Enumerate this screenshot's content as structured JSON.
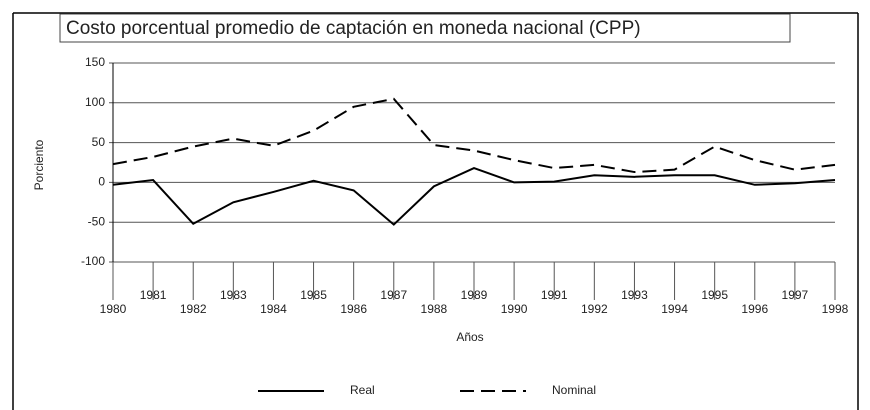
{
  "chart_data": {
    "type": "line",
    "title": "Costo porcentual promedio de captación en moneda nacional (CPP)",
    "xlabel": "Años",
    "ylabel": "Porciento",
    "x": [
      1980,
      1981,
      1982,
      1983,
      1984,
      1985,
      1986,
      1987,
      1988,
      1989,
      1990,
      1991,
      1992,
      1993,
      1994,
      1995,
      1996,
      1997,
      1998
    ],
    "xlim": [
      1980,
      1998
    ],
    "xticks": [
      1980,
      1981,
      1982,
      1983,
      1984,
      1985,
      1986,
      1987,
      1988,
      1989,
      1990,
      1991,
      1992,
      1993,
      1994,
      1995,
      1996,
      1997,
      1998
    ],
    "ylim": [
      -100,
      150
    ],
    "yticks": [
      -100,
      -50,
      0,
      50,
      100,
      150
    ],
    "grid": true,
    "series": [
      {
        "name": "Real",
        "color": "#000000",
        "dash": "solid",
        "values": [
          -3,
          3,
          -52,
          -25,
          -12,
          2,
          -10,
          -53,
          -5,
          18,
          0,
          1,
          9,
          7,
          9,
          9,
          -3,
          -1,
          3
        ]
      },
      {
        "name": "Nominal",
        "color": "#000000",
        "dash": "dashed",
        "values": [
          23,
          32,
          45,
          55,
          46,
          65,
          95,
          105,
          47,
          40,
          28,
          18,
          22,
          13,
          16,
          45,
          28,
          16,
          22
        ]
      }
    ],
    "legend": "bottom"
  }
}
